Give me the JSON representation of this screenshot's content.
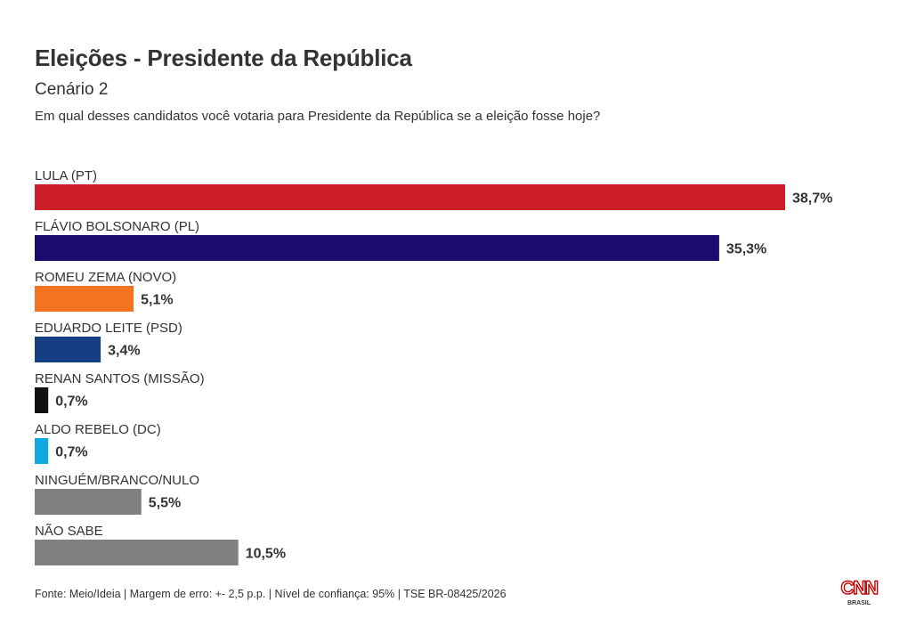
{
  "header": {
    "title": "Eleições - Presidente da República",
    "subtitle": "Cenário 2",
    "question": "Em qual desses candidatos você votaria para Presidente da República se a eleição fosse hoje?"
  },
  "chart_data": {
    "type": "bar",
    "orientation": "horizontal",
    "title": "Eleições - Presidente da República",
    "subtitle": "Cenário 2",
    "unit": "%",
    "xlim": [
      0,
      40
    ],
    "categories": [
      "LULA (PT)",
      "FLÁVIO BOLSONARO (PL)",
      "ROMEU ZEMA (NOVO)",
      "EDUARDO LEITE (PSD)",
      "RENAN SANTOS (MISSÃO)",
      "ALDO REBELO (DC)",
      "NINGUÉM/BRANCO/NULO",
      "NÃO SABE"
    ],
    "values": [
      38.7,
      35.3,
      5.1,
      3.4,
      0.7,
      0.7,
      5.5,
      10.5
    ],
    "value_labels": [
      "38,7%",
      "35,3%",
      "5,1%",
      "3,4%",
      "0,7%",
      "0,7%",
      "5,5%",
      "10,5%"
    ],
    "colors": [
      "#cc1f2a",
      "#1b0d6e",
      "#f37321",
      "#163f83",
      "#111111",
      "#12a9e2",
      "#808080",
      "#808080"
    ]
  },
  "footer": {
    "source": "Fonte: Meio/Ideia | Margem de erro: +- 2,5 p.p. | Nível de confiança: 95% | TSE BR-08425/2026"
  },
  "logo": {
    "text": "CNN",
    "sub": "BRASIL",
    "color": "#cc0000"
  }
}
